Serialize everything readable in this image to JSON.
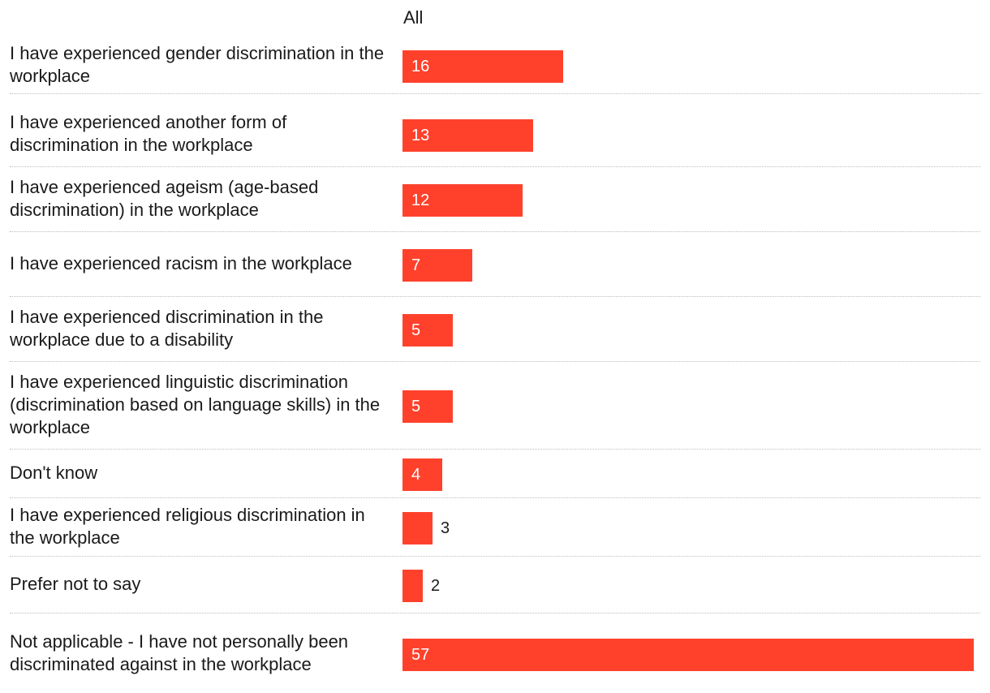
{
  "chart_data": {
    "type": "bar",
    "orientation": "horizontal",
    "series": [
      {
        "name": "All",
        "color": "#ff412c"
      }
    ],
    "categories": [
      "I have experienced gender discrimination in the workplace",
      "I have experienced another form of discrimination in the workplace",
      "I have experienced ageism (age-based discrimination) in the workplace",
      "I have experienced racism in the workplace",
      "I have experienced discrimination in the workplace due to a disability",
      "I have experienced linguistic discrimination (discrimination based on language skills) in the workplace",
      "Don't know",
      "I have experienced religious discrimination in the workplace",
      "Prefer not to say",
      "Not applicable - I have not personally been discriminated against in the workplace"
    ],
    "values": [
      16,
      13,
      12,
      7,
      5,
      5,
      4,
      3,
      2,
      57
    ],
    "xlim": [
      0,
      57
    ],
    "grid": false,
    "legend": "none",
    "title": "",
    "xlabel": "",
    "ylabel": ""
  }
}
